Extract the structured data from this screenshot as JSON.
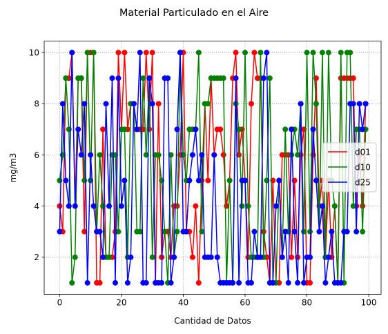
{
  "chart_data": {
    "type": "line",
    "title": "Material Particulado en el Aire",
    "xlabel": "Cantidad de Datos",
    "ylabel": "mg/m3",
    "xlim": [
      -5,
      104
    ],
    "ylim": [
      0.55,
      10.45
    ],
    "xticks": [
      0,
      20,
      40,
      60,
      80,
      100
    ],
    "yticks": [
      2,
      4,
      6,
      8,
      10
    ],
    "grid": true,
    "grid_style": "dotted",
    "legend_position": "center-right",
    "markers": true,
    "x": [
      0,
      1,
      2,
      3,
      4,
      5,
      6,
      7,
      8,
      9,
      10,
      11,
      12,
      13,
      14,
      15,
      16,
      17,
      18,
      19,
      20,
      21,
      22,
      23,
      24,
      25,
      26,
      27,
      28,
      29,
      30,
      31,
      32,
      33,
      34,
      35,
      36,
      37,
      38,
      39,
      40,
      41,
      42,
      43,
      44,
      45,
      46,
      47,
      48,
      49,
      50,
      51,
      52,
      53,
      54,
      55,
      56,
      57,
      58,
      59,
      60,
      61,
      62,
      63,
      64,
      65,
      66,
      67,
      68,
      69,
      70,
      71,
      72,
      73,
      74,
      75,
      76,
      77,
      78,
      79,
      80,
      81,
      82,
      83,
      84,
      85,
      86,
      87,
      88,
      89,
      90,
      91,
      92,
      93,
      94,
      95,
      96,
      97,
      98,
      99
    ],
    "series": [
      {
        "name": "d01",
        "color": "#ff0000",
        "values": [
          4,
          3,
          9,
          9,
          10,
          4,
          9,
          9,
          3,
          10,
          10,
          10,
          1,
          1,
          7,
          2,
          2,
          2,
          3,
          10,
          7,
          10,
          7,
          8,
          8,
          7,
          7,
          7,
          10,
          7,
          10,
          1,
          8,
          2,
          3,
          3,
          2,
          4,
          4,
          6,
          10,
          3,
          3,
          2,
          4,
          1,
          5,
          8,
          5,
          9,
          6,
          7,
          7,
          6,
          4,
          5,
          9,
          10,
          6,
          7,
          5,
          2,
          8,
          10,
          9,
          9,
          3,
          2,
          1,
          5,
          1,
          1,
          6,
          6,
          6,
          2,
          5,
          2,
          6,
          7,
          1,
          1,
          6,
          9,
          4,
          5,
          2,
          5,
          2,
          4,
          1,
          9,
          9,
          9,
          9,
          9,
          4,
          6,
          4,
          8
        ]
      },
      {
        "name": "d10",
        "color": "#008000",
        "values": [
          5,
          6,
          9,
          7,
          1,
          2,
          9,
          9,
          5,
          10,
          5,
          10,
          3,
          6,
          4,
          2,
          2,
          6,
          6,
          3,
          7,
          7,
          2,
          8,
          8,
          3,
          3,
          9,
          6,
          9,
          2,
          6,
          6,
          5,
          3,
          1,
          6,
          2,
          3,
          10,
          6,
          5,
          7,
          7,
          7,
          10,
          3,
          8,
          8,
          9,
          9,
          9,
          9,
          9,
          1,
          5,
          1,
          8,
          7,
          4,
          10,
          4,
          2,
          2,
          2,
          10,
          2,
          5,
          9,
          1,
          1,
          5,
          2,
          7,
          3,
          6,
          7,
          6,
          8,
          3,
          10,
          3,
          10,
          8,
          3,
          10,
          2,
          10,
          5,
          4,
          1,
          10,
          1,
          10,
          10,
          4,
          7,
          7,
          3,
          7
        ]
      },
      {
        "name": "d25",
        "color": "#0000ff",
        "values": [
          3,
          8,
          5,
          4,
          10,
          4,
          7,
          6,
          8,
          1,
          6,
          4,
          3,
          3,
          2,
          8,
          4,
          9,
          1,
          9,
          4,
          5,
          1,
          2,
          8,
          7,
          10,
          1,
          1,
          9,
          8,
          1,
          1,
          1,
          9,
          9,
          1,
          2,
          7,
          10,
          3,
          3,
          5,
          6,
          7,
          5,
          6,
          2,
          2,
          2,
          6,
          2,
          1,
          1,
          1,
          1,
          1,
          9,
          1,
          5,
          5,
          1,
          1,
          3,
          2,
          2,
          9,
          10,
          1,
          1,
          4,
          5,
          2,
          3,
          1,
          7,
          3,
          1,
          8,
          1,
          2,
          2,
          7,
          5,
          3,
          4,
          1,
          2,
          3,
          1,
          1,
          1,
          3,
          3,
          8,
          8,
          3,
          8,
          7,
          8
        ]
      }
    ]
  }
}
